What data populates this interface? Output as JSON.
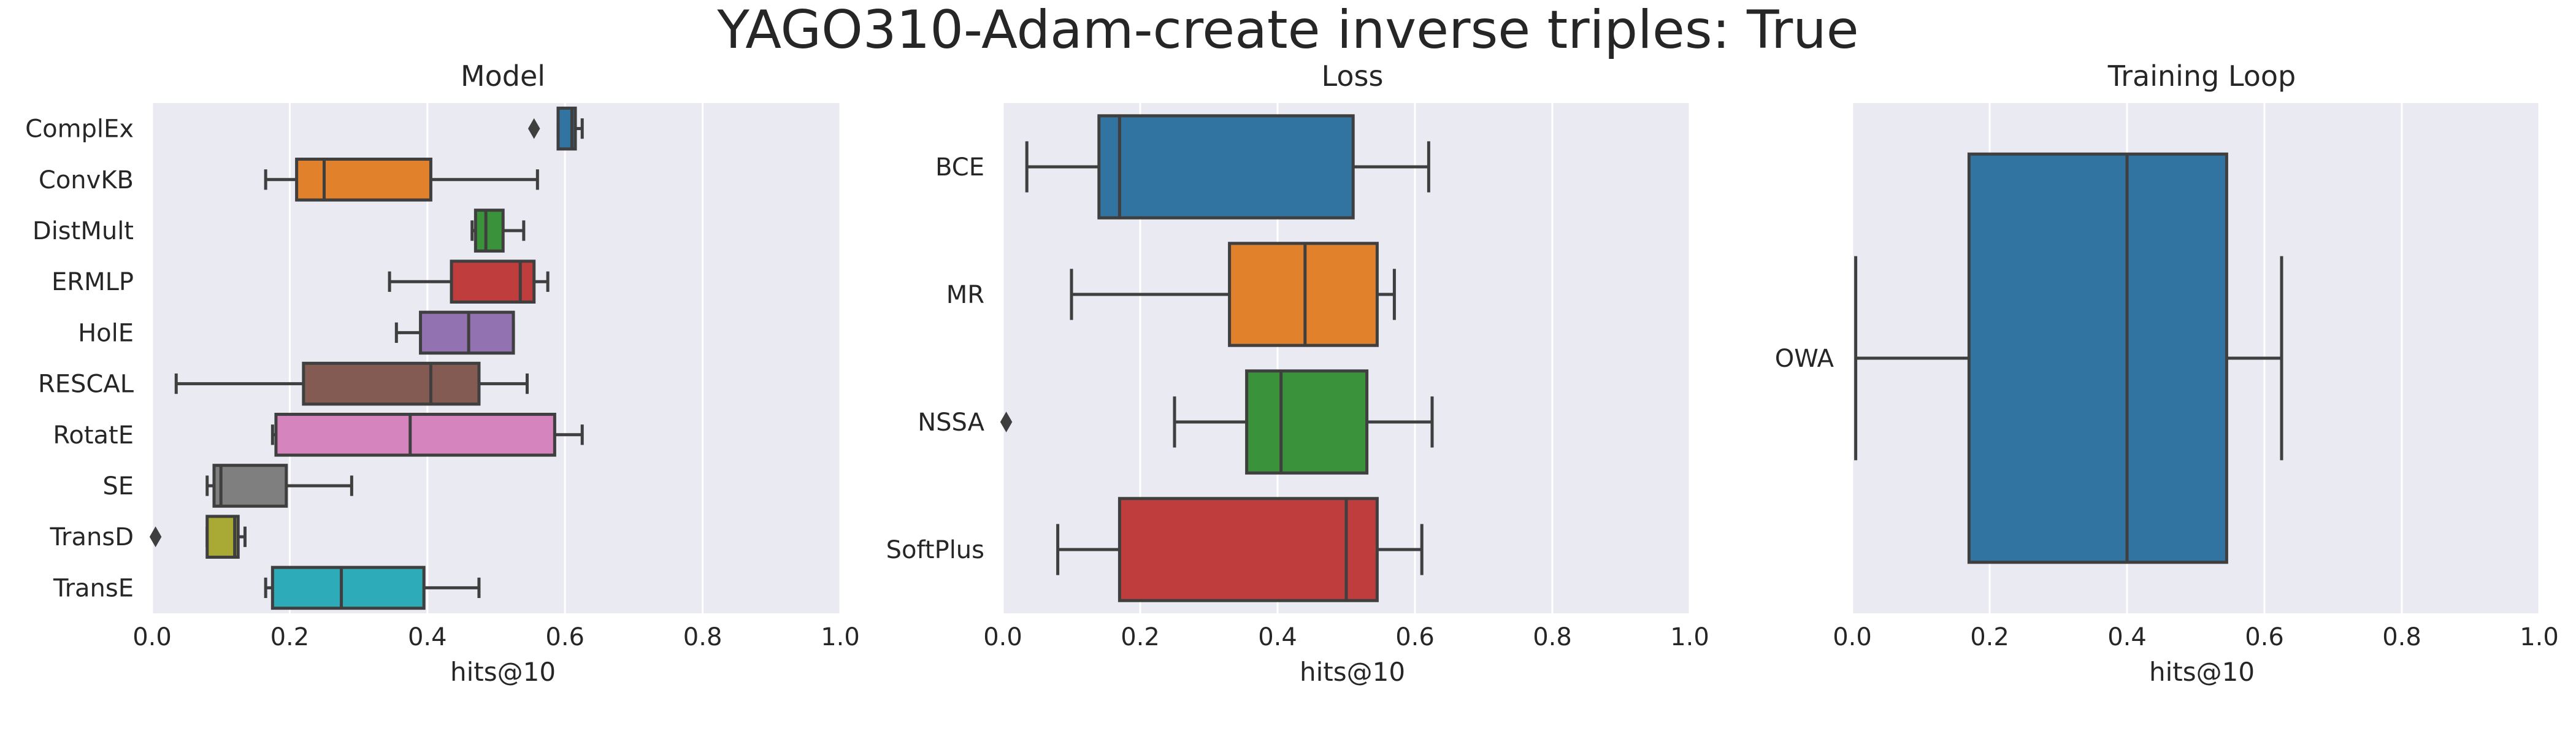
{
  "figure": {
    "suptitle": "YAGO310-Adam-create inverse triples: True"
  },
  "chart_data": [
    {
      "type": "box",
      "title": "Model",
      "xlabel": "hits@10",
      "ylabel": "",
      "xlim": [
        0,
        1
      ],
      "xticks": [
        "0.0",
        "0.2",
        "0.4",
        "0.6",
        "0.8",
        "1.0"
      ],
      "grid": true,
      "orientation": "horizontal",
      "categories": [
        "ComplEx",
        "ConvKB",
        "DistMult",
        "ERMLP",
        "HolE",
        "RESCAL",
        "RotatE",
        "SE",
        "TransD",
        "TransE"
      ],
      "colors": [
        "#3274a1",
        "#e1812c",
        "#3a923a",
        "#c03d3e",
        "#9372b2",
        "#845b53",
        "#d684bd",
        "#7f7f7f",
        "#a9aa35",
        "#2eabb8"
      ],
      "boxes": [
        {
          "whislo": 0.59,
          "q1": 0.59,
          "med": 0.61,
          "q3": 0.615,
          "whishi": 0.625,
          "fliers": [
            0.555
          ]
        },
        {
          "whislo": 0.165,
          "q1": 0.21,
          "med": 0.25,
          "q3": 0.405,
          "whishi": 0.56,
          "fliers": []
        },
        {
          "whislo": 0.465,
          "q1": 0.47,
          "med": 0.485,
          "q3": 0.51,
          "whishi": 0.54,
          "fliers": []
        },
        {
          "whislo": 0.345,
          "q1": 0.435,
          "med": 0.535,
          "q3": 0.555,
          "whishi": 0.575,
          "fliers": []
        },
        {
          "whislo": 0.355,
          "q1": 0.39,
          "med": 0.46,
          "q3": 0.525,
          "whishi": 0.525,
          "fliers": []
        },
        {
          "whislo": 0.035,
          "q1": 0.22,
          "med": 0.405,
          "q3": 0.475,
          "whishi": 0.545,
          "fliers": []
        },
        {
          "whislo": 0.175,
          "q1": 0.18,
          "med": 0.375,
          "q3": 0.585,
          "whishi": 0.625,
          "fliers": []
        },
        {
          "whislo": 0.08,
          "q1": 0.09,
          "med": 0.1,
          "q3": 0.195,
          "whishi": 0.29,
          "fliers": []
        },
        {
          "whislo": 0.08,
          "q1": 0.08,
          "med": 0.12,
          "q3": 0.125,
          "whishi": 0.135,
          "fliers": [
            0.005
          ]
        },
        {
          "whislo": 0.165,
          "q1": 0.175,
          "med": 0.275,
          "q3": 0.395,
          "whishi": 0.475,
          "fliers": []
        }
      ]
    },
    {
      "type": "box",
      "title": "Loss",
      "xlabel": "hits@10",
      "ylabel": "",
      "xlim": [
        0,
        1
      ],
      "xticks": [
        "0.0",
        "0.2",
        "0.4",
        "0.6",
        "0.8",
        "1.0"
      ],
      "grid": true,
      "orientation": "horizontal",
      "categories": [
        "BCE",
        "MR",
        "NSSA",
        "SoftPlus"
      ],
      "colors": [
        "#3274a1",
        "#e1812c",
        "#3a923a",
        "#c03d3e"
      ],
      "boxes": [
        {
          "whislo": 0.035,
          "q1": 0.14,
          "med": 0.17,
          "q3": 0.51,
          "whishi": 0.62,
          "fliers": []
        },
        {
          "whislo": 0.1,
          "q1": 0.33,
          "med": 0.44,
          "q3": 0.545,
          "whishi": 0.57,
          "fliers": []
        },
        {
          "whislo": 0.25,
          "q1": 0.355,
          "med": 0.405,
          "q3": 0.53,
          "whishi": 0.625,
          "fliers": [
            0.005
          ]
        },
        {
          "whislo": 0.08,
          "q1": 0.17,
          "med": 0.5,
          "q3": 0.545,
          "whishi": 0.61,
          "fliers": []
        }
      ]
    },
    {
      "type": "box",
      "title": "Training Loop",
      "xlabel": "hits@10",
      "ylabel": "",
      "xlim": [
        0,
        1
      ],
      "xticks": [
        "0.0",
        "0.2",
        "0.4",
        "0.6",
        "0.8",
        "1.0"
      ],
      "grid": true,
      "orientation": "horizontal",
      "categories": [
        "OWA"
      ],
      "colors": [
        "#3274a1"
      ],
      "boxes": [
        {
          "whislo": 0.005,
          "q1": 0.17,
          "med": 0.4,
          "q3": 0.545,
          "whishi": 0.625,
          "fliers": []
        }
      ]
    }
  ]
}
